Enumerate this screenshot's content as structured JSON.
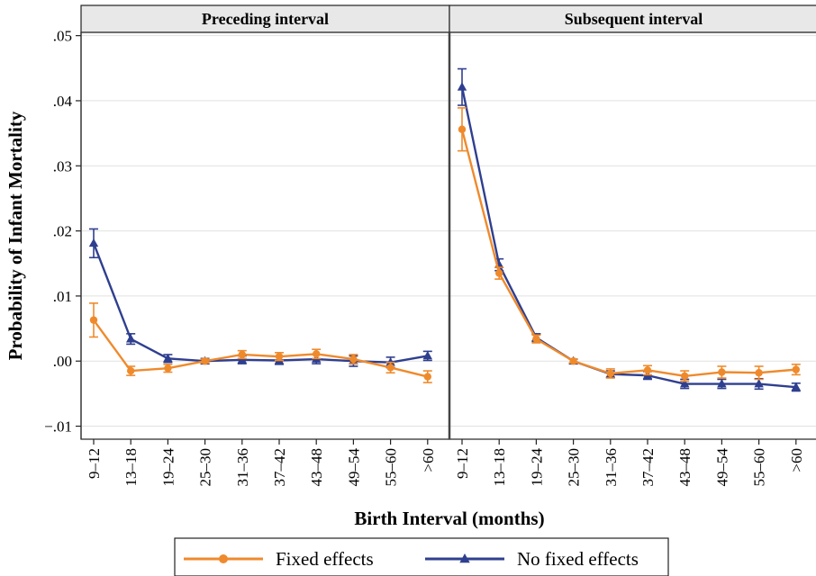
{
  "chart_data": {
    "type": "line",
    "ylabel": "Probability of Infant Mortality",
    "xlabel": "Birth Interval (months)",
    "ylim": [
      -0.012,
      0.0505
    ],
    "yticks": [
      -0.01,
      0.0,
      0.01,
      0.02,
      0.03,
      0.04,
      0.05
    ],
    "ytick_labels": [
      "−.01",
      ".00",
      ".01",
      ".02",
      ".03",
      ".04",
      ".05"
    ],
    "grid": true,
    "legend_position": "bottom",
    "categories": [
      "9–12",
      "13–18",
      "19–24",
      "25–30",
      "31–36",
      "37–42",
      "43–48",
      "49–54",
      "55–60",
      ">60"
    ],
    "series_styles": [
      {
        "name": "Fixed effects",
        "color": "#ef8a2c",
        "marker": "circle"
      },
      {
        "name": "No fixed effects",
        "color": "#2f3f8f",
        "marker": "triangle"
      }
    ],
    "panels": [
      {
        "title": "Preceding interval",
        "series": [
          {
            "name": "Fixed effects",
            "values": [
              0.0063,
              -0.0015,
              -0.0011,
              0.0,
              0.001,
              0.0007,
              0.0011,
              0.0003,
              -0.001,
              -0.0024
            ],
            "lower": [
              0.0037,
              -0.0022,
              -0.0017,
              -0.0003,
              0.0004,
              0.0001,
              0.0004,
              -0.0004,
              -0.0018,
              -0.0033
            ],
            "upper": [
              0.0089,
              -0.0008,
              -0.0005,
              0.0003,
              0.0016,
              0.0013,
              0.0018,
              0.001,
              -0.0002,
              -0.0015
            ]
          },
          {
            "name": "No fixed effects",
            "values": [
              0.0181,
              0.0034,
              0.0004,
              0.0,
              0.0002,
              0.0001,
              0.0003,
              0.0,
              -0.0002,
              0.0008
            ],
            "lower": [
              0.0159,
              0.0026,
              -0.0002,
              -0.0004,
              -0.0004,
              -0.0005,
              -0.0004,
              -0.0008,
              -0.001,
              0.0001
            ],
            "upper": [
              0.0203,
              0.0042,
              0.001,
              0.0004,
              0.0008,
              0.0007,
              0.001,
              0.0008,
              0.0006,
              0.0015
            ]
          }
        ]
      },
      {
        "title": "Subsequent interval",
        "series": [
          {
            "name": "Fixed effects",
            "values": [
              0.0356,
              0.0135,
              0.0034,
              0.0,
              -0.0019,
              -0.0014,
              -0.0023,
              -0.0017,
              -0.0018,
              -0.0013
            ],
            "lower": [
              0.0323,
              0.0126,
              0.0028,
              -0.0003,
              -0.0026,
              -0.0021,
              -0.0031,
              -0.0026,
              -0.0028,
              -0.0021
            ],
            "upper": [
              0.0389,
              0.0144,
              0.004,
              0.0003,
              -0.0012,
              -0.0007,
              -0.0015,
              -0.0008,
              -0.0008,
              -0.0005
            ]
          },
          {
            "name": "No fixed effects",
            "values": [
              0.0421,
              0.0148,
              0.0036,
              0.0,
              -0.002,
              -0.0022,
              -0.0035,
              -0.0035,
              -0.0035,
              -0.004
            ],
            "lower": [
              0.0393,
              0.0139,
              0.003,
              -0.0003,
              -0.0025,
              -0.0028,
              -0.0042,
              -0.0042,
              -0.0043,
              -0.0046
            ],
            "upper": [
              0.0449,
              0.0157,
              0.0042,
              0.0003,
              -0.0015,
              -0.0016,
              -0.0028,
              -0.0028,
              -0.0027,
              -0.0034
            ]
          }
        ]
      }
    ]
  }
}
